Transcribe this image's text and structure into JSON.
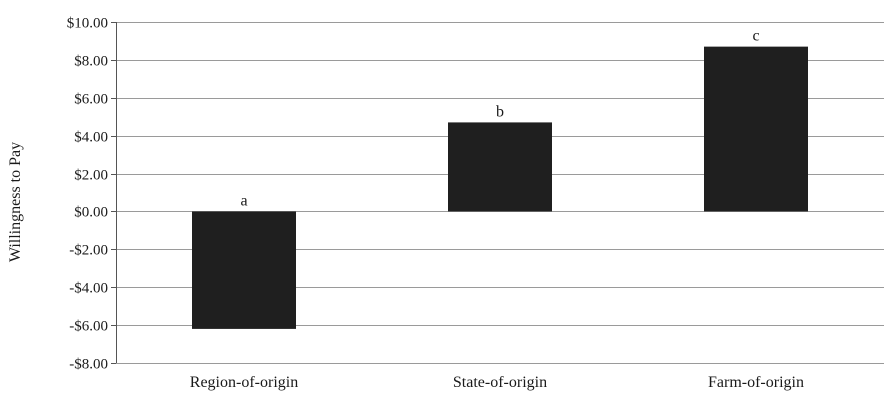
{
  "chart_data": {
    "type": "bar",
    "categories": [
      "Region-of-origin",
      "State-of-origin",
      "Farm-of-origin"
    ],
    "values": [
      -6.2,
      4.7,
      8.7
    ],
    "annotations": [
      "a",
      "b",
      "c"
    ],
    "ylabel": "Willingness to Pay",
    "xlabel": "",
    "ylim": [
      -8,
      10
    ],
    "yticks": [
      10,
      8,
      6,
      4,
      2,
      0,
      -2,
      -4,
      -6,
      -8
    ],
    "ytick_labels": [
      "$10.00",
      "$8.00",
      "$6.00",
      "$4.00",
      "$2.00",
      "$0.00",
      "-$2.00",
      "-$4.00",
      "-$6.00",
      "-$8.00"
    ],
    "grid": true,
    "legend": "none",
    "colors": {
      "bar": "#1f1f1f",
      "grid": "#9a9a9a",
      "axis": "#555555",
      "text": "#1a1a1a"
    }
  }
}
